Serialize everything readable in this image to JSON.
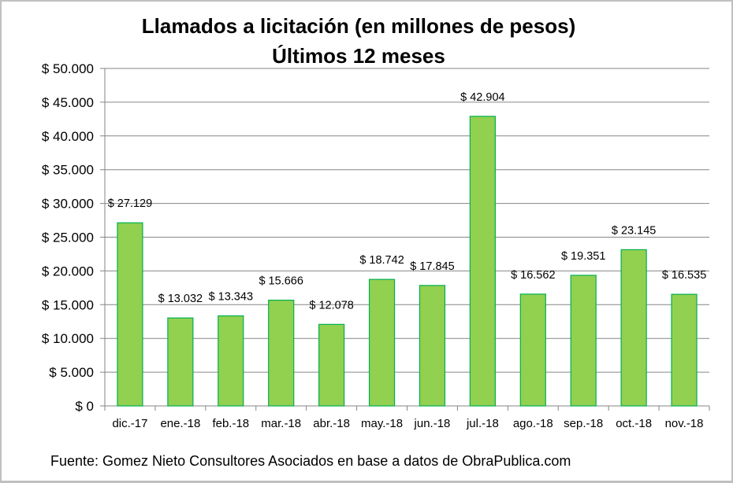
{
  "chart_data": {
    "type": "bar",
    "title": "Llamados a licitación (en millones de pesos)",
    "subtitle": "Últimos 12 meses",
    "xlabel": "",
    "ylabel": "",
    "categories": [
      "dic.-17",
      "ene.-18",
      "feb.-18",
      "mar.-18",
      "abr.-18",
      "may.-18",
      "jun.-18",
      "jul.-18",
      "ago.-18",
      "sep.-18",
      "oct.-18",
      "nov.-18"
    ],
    "values": [
      27129,
      13032,
      13343,
      15666,
      12078,
      18742,
      17845,
      42904,
      16562,
      19351,
      23145,
      16535
    ],
    "data_labels": [
      "$ 27.129",
      "$ 13.032",
      "$ 13.343",
      "$ 15.666",
      "$ 12.078",
      "$ 18.742",
      "$ 17.845",
      "$ 42.904",
      "$ 16.562",
      "$ 19.351",
      "$ 23.145",
      "$ 16.535"
    ],
    "ylim": [
      0,
      50000
    ],
    "yticks": [
      0,
      5000,
      10000,
      15000,
      20000,
      25000,
      30000,
      35000,
      40000,
      45000,
      50000
    ],
    "ytick_labels": [
      "$ 0",
      "$ 5.000",
      "$ 10.000",
      "$ 15.000",
      "$ 20.000",
      "$ 25.000",
      "$ 30.000",
      "$ 35.000",
      "$ 40.000",
      "$ 45.000",
      "$ 50.000"
    ],
    "grid": true,
    "legend": "none",
    "source_note": "Fuente: Gomez Nieto Consultores Asociados en base a datos de ObraPublica.com",
    "colors": {
      "bar_fill": "#92d050",
      "bar_stroke": "#00b050",
      "grid": "#868686"
    }
  }
}
